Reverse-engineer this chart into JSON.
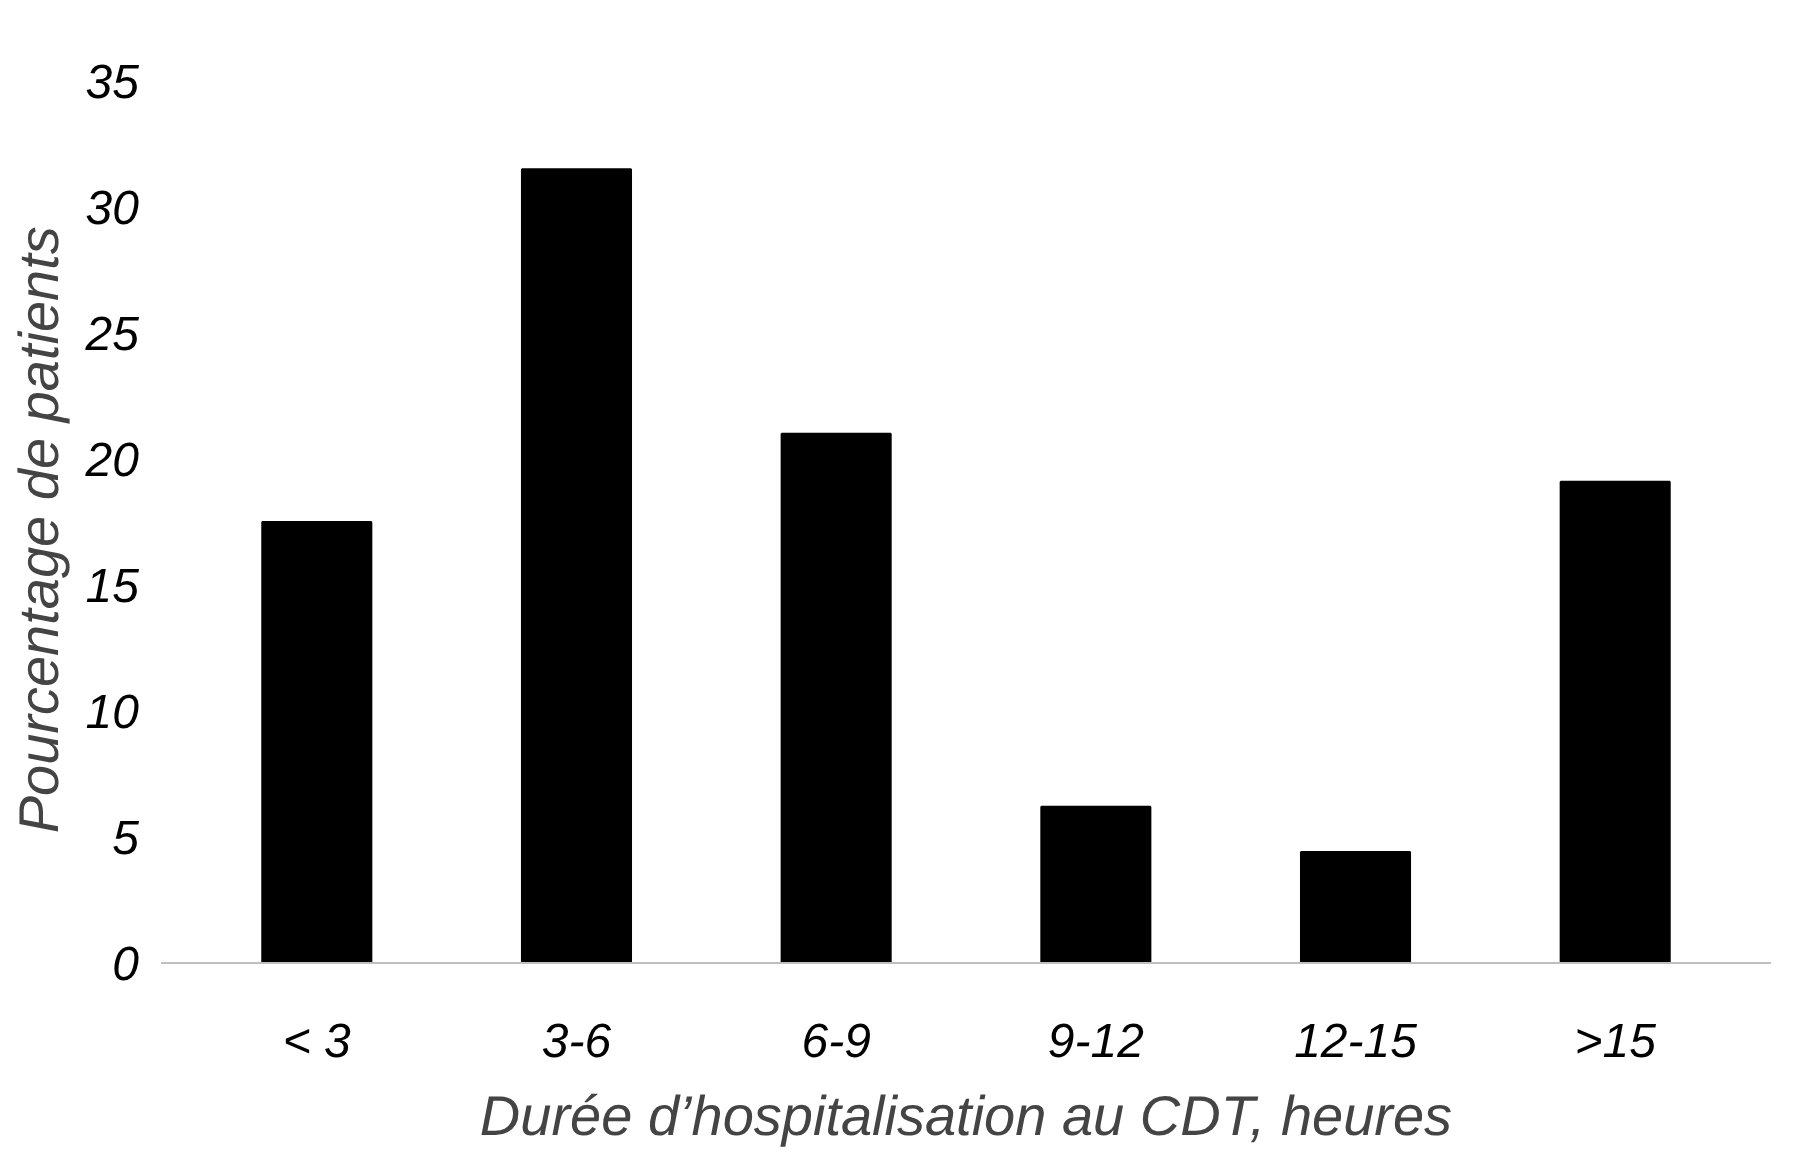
{
  "chart_data": {
    "type": "bar",
    "xlabel": "Durée d’hospitalisation au CDT, heures",
    "ylabel": "Pourcentage de  patients",
    "categories": [
      "< 3",
      "3-6",
      "6-9",
      "9-12",
      "12-15",
      ">15"
    ],
    "values": [
      17.5,
      31.5,
      21.0,
      6.2,
      4.4,
      19.1
    ],
    "color": "#000000",
    "ylim": [
      0,
      35
    ],
    "yticks": [
      0,
      5,
      10,
      15,
      20,
      25,
      30,
      35
    ],
    "grid": false
  }
}
